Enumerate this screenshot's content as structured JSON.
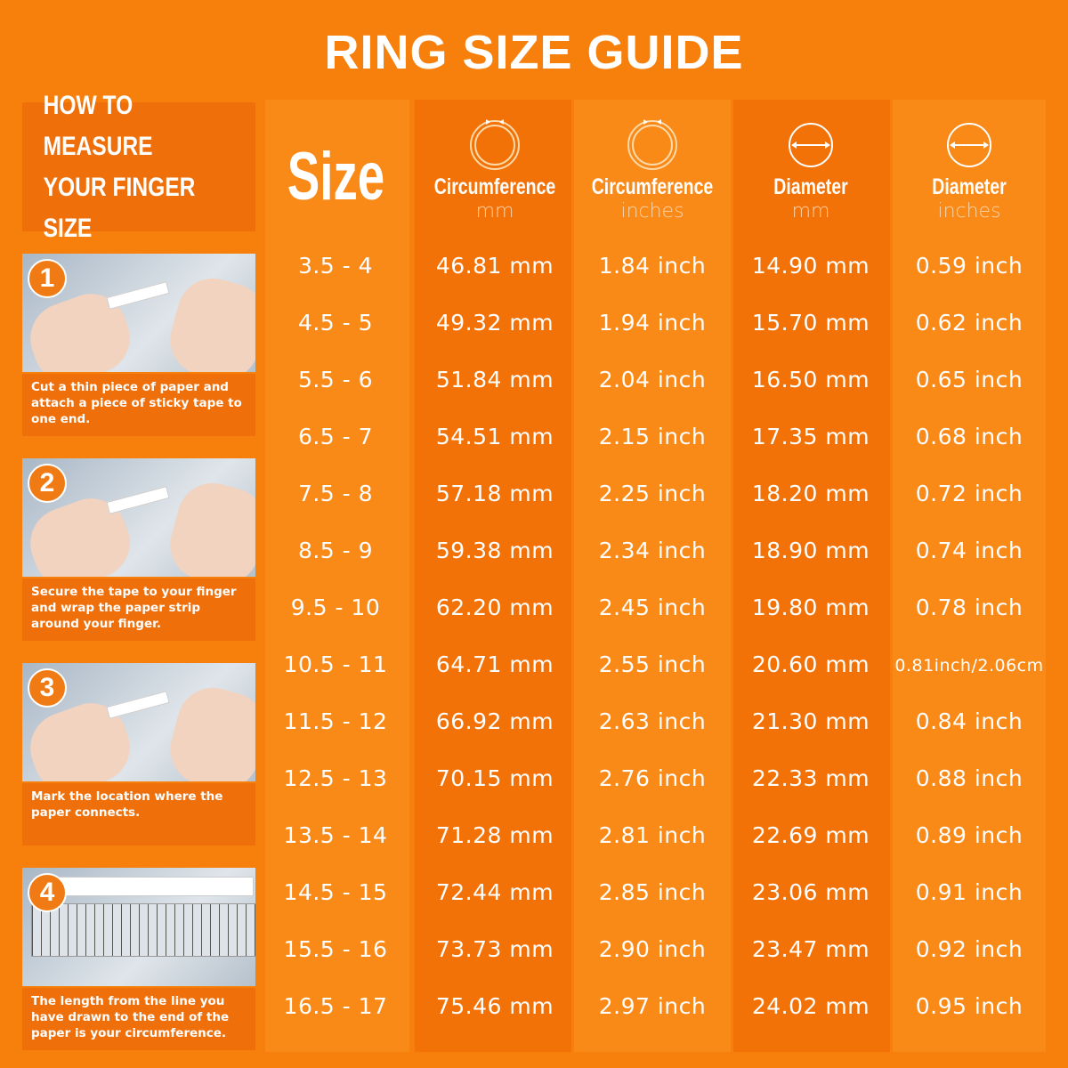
{
  "title": "RING SIZE GUIDE",
  "howto": {
    "line1": "HOW TO MEASURE",
    "line2": "YOUR FINGER SIZE"
  },
  "steps": [
    {
      "number": "1",
      "caption": "Cut a thin piece of paper and attach a piece of sticky tape to one end."
    },
    {
      "number": "2",
      "caption": "Secure the tape to your finger and wrap the paper strip around your finger."
    },
    {
      "number": "3",
      "caption": "Mark the location where the paper connects."
    },
    {
      "number": "4",
      "caption": "The length from the line you have drawn to the end of the paper is your circumference."
    }
  ],
  "table": {
    "size_header": "Size",
    "columns": [
      {
        "title": "Circumference",
        "unit": "mm",
        "icon": "ring-circumference-icon"
      },
      {
        "title": "Circumference",
        "unit": "inches",
        "icon": "ring-circumference-icon"
      },
      {
        "title": "Diameter",
        "unit": "mm",
        "icon": "diameter-icon"
      },
      {
        "title": "Diameter",
        "unit": "inches",
        "icon": "diameter-icon"
      }
    ],
    "rows": [
      [
        "3.5 - 4",
        "46.81 mm",
        "1.84 inch",
        "14.90 mm",
        "0.59 inch"
      ],
      [
        "4.5 - 5",
        "49.32 mm",
        "1.94 inch",
        "15.70 mm",
        "0.62 inch"
      ],
      [
        "5.5 - 6",
        "51.84 mm",
        "2.04 inch",
        "16.50 mm",
        "0.65 inch"
      ],
      [
        "6.5 - 7",
        "54.51 mm",
        "2.15 inch",
        "17.35 mm",
        "0.68 inch"
      ],
      [
        "7.5 - 8",
        "57.18 mm",
        "2.25 inch",
        "18.20 mm",
        "0.72 inch"
      ],
      [
        "8.5 - 9",
        "59.38 mm",
        "2.34 inch",
        "18.90 mm",
        "0.74 inch"
      ],
      [
        "9.5 - 10",
        "62.20 mm",
        "2.45 inch",
        "19.80 mm",
        "0.78 inch"
      ],
      [
        "10.5 - 11",
        "64.71 mm",
        "2.55 inch",
        "20.60 mm",
        "0.81inch/2.06cm"
      ],
      [
        "11.5 - 12",
        "66.92 mm",
        "2.63 inch",
        "21.30 mm",
        "0.84 inch"
      ],
      [
        "12.5 - 13",
        "70.15 mm",
        "2.76 inch",
        "22.33 mm",
        "0.88 inch"
      ],
      [
        "13.5 - 14",
        "71.28 mm",
        "2.81 inch",
        "22.69 mm",
        "0.89 inch"
      ],
      [
        "14.5 - 15",
        "72.44 mm",
        "2.85 inch",
        "23.06 mm",
        "0.91 inch"
      ],
      [
        "15.5 - 16",
        "73.73 mm",
        "2.90 inch",
        "23.47 mm",
        "0.92 inch"
      ],
      [
        "16.5 - 17",
        "75.46 mm",
        "2.97 inch",
        "24.02 mm",
        "0.95 inch"
      ]
    ]
  },
  "colors": {
    "background": "#f7800c",
    "panel": "#ef6f0a",
    "text": "#ffffff"
  }
}
